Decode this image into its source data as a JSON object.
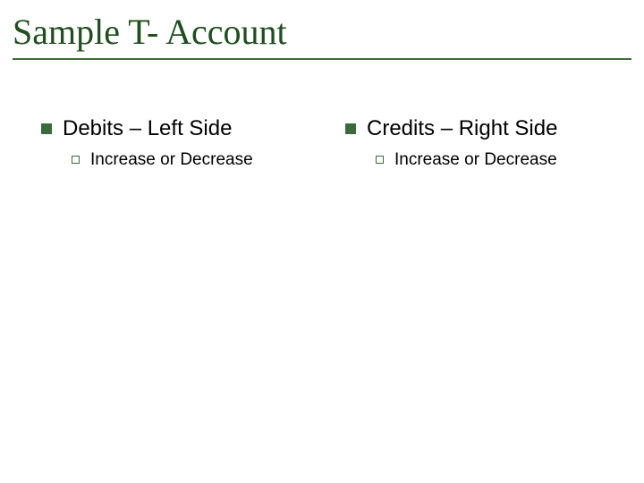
{
  "slide": {
    "title": "Sample T- Account",
    "title_color": "#1f4e1f",
    "title_fontsize_pt": 40,
    "title_font_family": "Times New Roman",
    "rule_color": "#3b6b3b",
    "background_color": "#ffffff"
  },
  "bullets": {
    "level1_marker": "filled-square",
    "level1_marker_color": "#3b6b3b",
    "level1_fontsize_pt": 24,
    "level1_text_color": "#000000",
    "level2_marker": "hollow-square",
    "level2_marker_border_color": "#3b6b3b",
    "level2_fontsize_pt": 19,
    "level2_text_color": "#000000"
  },
  "columns": {
    "left": {
      "heading": "Debits – Left Side",
      "items": [
        "Increase or Decrease"
      ]
    },
    "right": {
      "heading": "Credits – Right Side",
      "items": [
        "Increase or Decrease"
      ]
    }
  }
}
